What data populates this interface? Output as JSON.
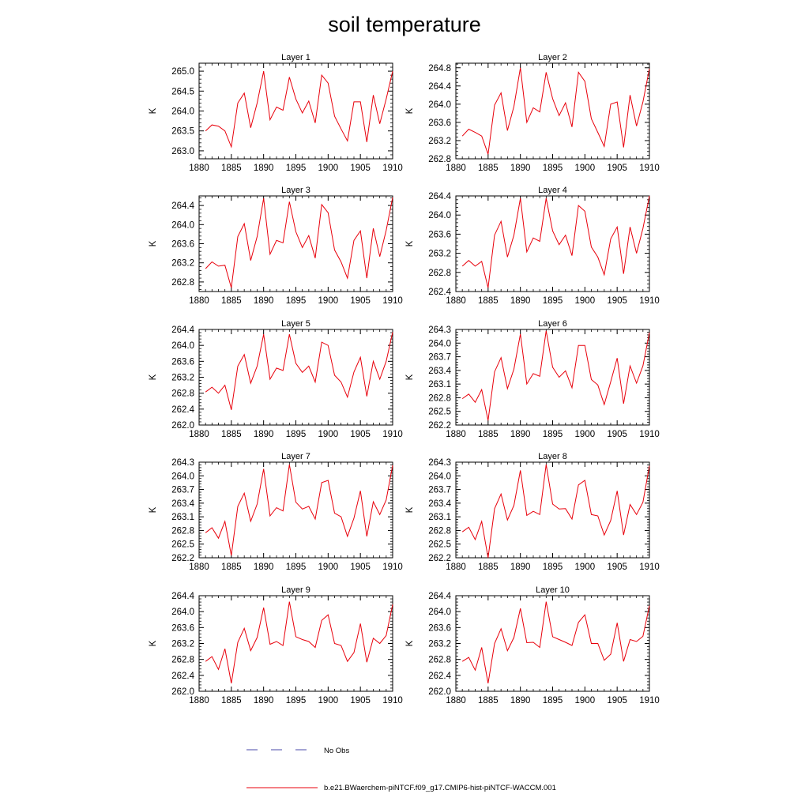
{
  "title": "soil temperature",
  "colors": {
    "model": "#e8000b",
    "obs": "#4848a8",
    "axis": "#000000"
  },
  "legend": {
    "obs_label": "No Obs",
    "model_label": "b.e21.BWaerchem-piNTCF.f09_g17.CMIP6-hist-piNTCF-WACCM.001"
  },
  "chart_data": [
    {
      "type": "line",
      "title": "Layer 1",
      "ylabel": "K",
      "xlim": [
        1880,
        1910
      ],
      "ylim": [
        262.8,
        265.2
      ],
      "xticks": [
        1880,
        1885,
        1890,
        1895,
        1900,
        1905,
        1910
      ],
      "yticks": [
        "263.0",
        "263.5",
        "264.0",
        "264.5",
        "265.0"
      ],
      "x": [
        1881,
        1882,
        1883,
        1884,
        1885,
        1886,
        1887,
        1888,
        1889,
        1890,
        1891,
        1892,
        1893,
        1894,
        1895,
        1896,
        1897,
        1898,
        1899,
        1900,
        1901,
        1902,
        1903,
        1904,
        1905,
        1906,
        1907,
        1908,
        1909,
        1910
      ],
      "series": [
        {
          "name": "b.e21.BWaerchem-piNTCF.f09_g17.CMIP6-hist-piNTCF-WACCM.001",
          "values": [
            263.5,
            263.65,
            263.62,
            263.5,
            263.1,
            264.2,
            264.45,
            263.58,
            264.2,
            265.0,
            263.78,
            264.1,
            264.02,
            264.85,
            264.3,
            263.95,
            264.25,
            263.7,
            264.9,
            264.7,
            263.87,
            263.55,
            263.25,
            264.23,
            264.23,
            263.22,
            264.4,
            263.68,
            264.3,
            265.0
          ]
        }
      ]
    },
    {
      "type": "line",
      "title": "Layer 2",
      "ylabel": "K",
      "xlim": [
        1880,
        1910
      ],
      "ylim": [
        262.8,
        264.9
      ],
      "xticks": [
        1880,
        1885,
        1890,
        1895,
        1900,
        1905,
        1910
      ],
      "yticks": [
        "262.8",
        "263.2",
        "263.6",
        "264.0",
        "264.4",
        "264.8"
      ],
      "x": [
        1881,
        1882,
        1883,
        1884,
        1885,
        1886,
        1887,
        1888,
        1889,
        1890,
        1891,
        1892,
        1893,
        1894,
        1895,
        1896,
        1897,
        1898,
        1899,
        1900,
        1901,
        1902,
        1903,
        1904,
        1905,
        1906,
        1907,
        1908,
        1909,
        1910
      ],
      "series": [
        {
          "name": "b.e21.BWaerchem-piNTCF.f09_g17.CMIP6-hist-piNTCF-WACCM.001",
          "values": [
            263.3,
            263.45,
            263.38,
            263.3,
            262.9,
            263.98,
            264.25,
            263.42,
            263.95,
            264.8,
            263.6,
            263.92,
            263.83,
            264.7,
            264.12,
            263.75,
            264.03,
            263.5,
            264.7,
            264.5,
            263.68,
            263.38,
            263.07,
            264.0,
            264.05,
            263.05,
            264.2,
            263.52,
            264.05,
            264.78
          ]
        }
      ]
    },
    {
      "type": "line",
      "title": "Layer 3",
      "ylabel": "K",
      "xlim": [
        1880,
        1910
      ],
      "ylim": [
        262.6,
        264.6
      ],
      "xticks": [
        1880,
        1885,
        1890,
        1895,
        1900,
        1905,
        1910
      ],
      "yticks": [
        "262.8",
        "263.2",
        "263.6",
        "264.0",
        "264.4"
      ],
      "x": [
        1881,
        1882,
        1883,
        1884,
        1885,
        1886,
        1887,
        1888,
        1889,
        1890,
        1891,
        1892,
        1893,
        1894,
        1895,
        1896,
        1897,
        1898,
        1899,
        1900,
        1901,
        1902,
        1903,
        1904,
        1905,
        1906,
        1907,
        1908,
        1909,
        1910
      ],
      "series": [
        {
          "name": "b.e21.BWaerchem-piNTCF.f09_g17.CMIP6-hist-piNTCF-WACCM.001",
          "values": [
            263.08,
            263.22,
            263.13,
            263.15,
            262.68,
            263.75,
            264.02,
            263.25,
            263.75,
            264.55,
            263.38,
            263.67,
            263.62,
            264.48,
            263.85,
            263.52,
            263.77,
            263.3,
            264.42,
            264.25,
            263.47,
            263.22,
            262.88,
            263.67,
            263.87,
            262.88,
            263.92,
            263.33,
            263.88,
            264.57
          ]
        }
      ]
    },
    {
      "type": "line",
      "title": "Layer 4",
      "ylabel": "K",
      "xlim": [
        1880,
        1910
      ],
      "ylim": [
        262.4,
        264.4
      ],
      "xticks": [
        1880,
        1885,
        1890,
        1895,
        1900,
        1905,
        1910
      ],
      "yticks": [
        "262.4",
        "262.8",
        "263.2",
        "263.6",
        "264.0",
        "264.4"
      ],
      "x": [
        1881,
        1882,
        1883,
        1884,
        1885,
        1886,
        1887,
        1888,
        1889,
        1890,
        1891,
        1892,
        1893,
        1894,
        1895,
        1896,
        1897,
        1898,
        1899,
        1900,
        1901,
        1902,
        1903,
        1904,
        1905,
        1906,
        1907,
        1908,
        1909,
        1910
      ],
      "series": [
        {
          "name": "b.e21.BWaerchem-piNTCF.f09_g17.CMIP6-hist-piNTCF-WACCM.001",
          "values": [
            262.93,
            263.05,
            262.93,
            263.03,
            262.48,
            263.58,
            263.87,
            263.12,
            263.58,
            264.35,
            263.23,
            263.52,
            263.45,
            264.35,
            263.67,
            263.38,
            263.58,
            263.15,
            264.2,
            264.08,
            263.33,
            263.12,
            262.75,
            263.5,
            263.75,
            262.77,
            263.75,
            263.2,
            263.72,
            264.4
          ]
        }
      ]
    },
    {
      "type": "line",
      "title": "Layer 5",
      "ylabel": "K",
      "xlim": [
        1880,
        1910
      ],
      "ylim": [
        262.0,
        264.4
      ],
      "xticks": [
        1880,
        1885,
        1890,
        1895,
        1900,
        1905,
        1910
      ],
      "yticks": [
        "262.0",
        "262.4",
        "262.8",
        "263.2",
        "263.6",
        "264.0",
        "264.4"
      ],
      "x": [
        1881,
        1882,
        1883,
        1884,
        1885,
        1886,
        1887,
        1888,
        1889,
        1890,
        1891,
        1892,
        1893,
        1894,
        1895,
        1896,
        1897,
        1898,
        1899,
        1900,
        1901,
        1902,
        1903,
        1904,
        1905,
        1906,
        1907,
        1908,
        1909,
        1910
      ],
      "series": [
        {
          "name": "b.e21.BWaerchem-piNTCF.f09_g17.CMIP6-hist-piNTCF-WACCM.001",
          "values": [
            262.83,
            262.95,
            262.8,
            263.0,
            262.38,
            263.48,
            263.77,
            263.05,
            263.48,
            264.28,
            263.15,
            263.43,
            263.37,
            264.28,
            263.55,
            263.32,
            263.48,
            263.08,
            264.08,
            264.0,
            263.25,
            263.08,
            262.7,
            263.33,
            263.7,
            262.72,
            263.6,
            263.15,
            263.6,
            264.33
          ]
        }
      ]
    },
    {
      "type": "line",
      "title": "Layer 6",
      "ylabel": "K",
      "xlim": [
        1880,
        1910
      ],
      "ylim": [
        262.2,
        264.3
      ],
      "xticks": [
        1880,
        1885,
        1890,
        1895,
        1900,
        1905,
        1910
      ],
      "yticks": [
        "262.2",
        "262.5",
        "262.8",
        "263.1",
        "263.4",
        "263.7",
        "264.0",
        "264.3"
      ],
      "x": [
        1881,
        1882,
        1883,
        1884,
        1885,
        1886,
        1887,
        1888,
        1889,
        1890,
        1891,
        1892,
        1893,
        1894,
        1895,
        1896,
        1897,
        1898,
        1899,
        1900,
        1901,
        1902,
        1903,
        1904,
        1905,
        1906,
        1907,
        1908,
        1909,
        1910
      ],
      "series": [
        {
          "name": "b.e21.BWaerchem-piNTCF.f09_g17.CMIP6-hist-piNTCF-WACCM.001",
          "values": [
            262.78,
            262.88,
            262.7,
            262.98,
            262.3,
            263.37,
            263.68,
            263.0,
            263.43,
            264.2,
            263.1,
            263.33,
            263.27,
            264.27,
            263.47,
            263.25,
            263.39,
            263.02,
            263.95,
            263.95,
            263.2,
            263.08,
            262.65,
            263.15,
            263.67,
            262.67,
            263.5,
            263.12,
            263.5,
            264.23
          ]
        }
      ]
    },
    {
      "type": "line",
      "title": "Layer 7",
      "ylabel": "K",
      "xlim": [
        1880,
        1910
      ],
      "ylim": [
        262.2,
        264.3
      ],
      "xticks": [
        1880,
        1885,
        1890,
        1895,
        1900,
        1905,
        1910
      ],
      "yticks": [
        "262.2",
        "262.5",
        "262.8",
        "263.1",
        "263.4",
        "263.7",
        "264.0",
        "264.3"
      ],
      "x": [
        1881,
        1882,
        1883,
        1884,
        1885,
        1886,
        1887,
        1888,
        1889,
        1890,
        1891,
        1892,
        1893,
        1894,
        1895,
        1896,
        1897,
        1898,
        1899,
        1900,
        1901,
        1902,
        1903,
        1904,
        1905,
        1906,
        1907,
        1908,
        1909,
        1910
      ],
      "series": [
        {
          "name": "b.e21.BWaerchem-piNTCF.f09_g17.CMIP6-hist-piNTCF-WACCM.001",
          "values": [
            262.75,
            262.86,
            262.63,
            263.0,
            262.25,
            263.33,
            263.62,
            263.0,
            263.38,
            264.15,
            263.12,
            263.3,
            263.23,
            264.25,
            263.42,
            263.27,
            263.33,
            263.05,
            263.85,
            263.9,
            263.18,
            263.1,
            262.67,
            263.07,
            263.67,
            262.67,
            263.43,
            263.15,
            263.47,
            264.23
          ]
        }
      ]
    },
    {
      "type": "line",
      "title": "Layer 8",
      "ylabel": "K",
      "xlim": [
        1880,
        1910
      ],
      "ylim": [
        262.2,
        264.3
      ],
      "xticks": [
        1880,
        1885,
        1890,
        1895,
        1900,
        1905,
        1910
      ],
      "yticks": [
        "262.2",
        "262.5",
        "262.8",
        "263.1",
        "263.4",
        "263.7",
        "264.0",
        "264.3"
      ],
      "x": [
        1881,
        1882,
        1883,
        1884,
        1885,
        1886,
        1887,
        1888,
        1889,
        1890,
        1891,
        1892,
        1893,
        1894,
        1895,
        1896,
        1897,
        1898,
        1899,
        1900,
        1901,
        1902,
        1903,
        1904,
        1905,
        1906,
        1907,
        1908,
        1909,
        1910
      ],
      "series": [
        {
          "name": "b.e21.BWaerchem-piNTCF.f09_g17.CMIP6-hist-piNTCF-WACCM.001",
          "values": [
            262.77,
            262.87,
            262.6,
            263.0,
            262.2,
            263.28,
            263.6,
            263.03,
            263.35,
            264.12,
            263.13,
            263.22,
            263.15,
            264.25,
            263.38,
            263.27,
            263.28,
            263.05,
            263.8,
            263.9,
            263.15,
            263.12,
            262.7,
            263.02,
            263.67,
            262.7,
            263.37,
            263.15,
            263.42,
            264.22
          ]
        }
      ]
    },
    {
      "type": "line",
      "title": "Layer 9",
      "ylabel": "K",
      "xlim": [
        1880,
        1910
      ],
      "ylim": [
        262.0,
        264.4
      ],
      "xticks": [
        1880,
        1885,
        1890,
        1895,
        1900,
        1905,
        1910
      ],
      "yticks": [
        "262.0",
        "262.4",
        "262.8",
        "263.2",
        "263.6",
        "264.0",
        "264.4"
      ],
      "x": [
        1881,
        1882,
        1883,
        1884,
        1885,
        1886,
        1887,
        1888,
        1889,
        1890,
        1891,
        1892,
        1893,
        1894,
        1895,
        1896,
        1897,
        1898,
        1899,
        1900,
        1901,
        1902,
        1903,
        1904,
        1905,
        1906,
        1907,
        1908,
        1909,
        1910
      ],
      "series": [
        {
          "name": "b.e21.BWaerchem-piNTCF.f09_g17.CMIP6-hist-piNTCF-WACCM.001",
          "values": [
            262.75,
            262.87,
            262.55,
            263.07,
            262.2,
            263.23,
            263.58,
            263.02,
            263.35,
            264.1,
            263.18,
            263.25,
            263.15,
            264.25,
            263.37,
            263.3,
            263.25,
            263.1,
            263.78,
            263.92,
            263.2,
            263.15,
            262.75,
            262.97,
            263.7,
            262.73,
            263.33,
            263.2,
            263.4,
            264.18
          ]
        }
      ]
    },
    {
      "type": "line",
      "title": "Layer 10",
      "ylabel": "K",
      "xlim": [
        1880,
        1910
      ],
      "ylim": [
        262.0,
        264.4
      ],
      "xticks": [
        1880,
        1885,
        1890,
        1895,
        1900,
        1905,
        1910
      ],
      "yticks": [
        "262.0",
        "262.4",
        "262.8",
        "263.2",
        "263.6",
        "264.0",
        "264.4"
      ],
      "x": [
        1881,
        1882,
        1883,
        1884,
        1885,
        1886,
        1887,
        1888,
        1889,
        1890,
        1891,
        1892,
        1893,
        1894,
        1895,
        1896,
        1897,
        1898,
        1899,
        1900,
        1901,
        1902,
        1903,
        1904,
        1905,
        1906,
        1907,
        1908,
        1909,
        1910
      ],
      "series": [
        {
          "name": "b.e21.BWaerchem-piNTCF.f09_g17.CMIP6-hist-piNTCF-WACCM.001",
          "values": [
            262.75,
            262.85,
            262.53,
            263.1,
            262.2,
            263.2,
            263.57,
            263.02,
            263.35,
            264.08,
            263.22,
            263.23,
            263.1,
            264.25,
            263.37,
            263.3,
            263.23,
            263.15,
            263.73,
            263.92,
            263.2,
            263.2,
            262.78,
            262.93,
            263.72,
            262.75,
            263.3,
            263.25,
            263.38,
            264.15
          ]
        }
      ]
    }
  ]
}
